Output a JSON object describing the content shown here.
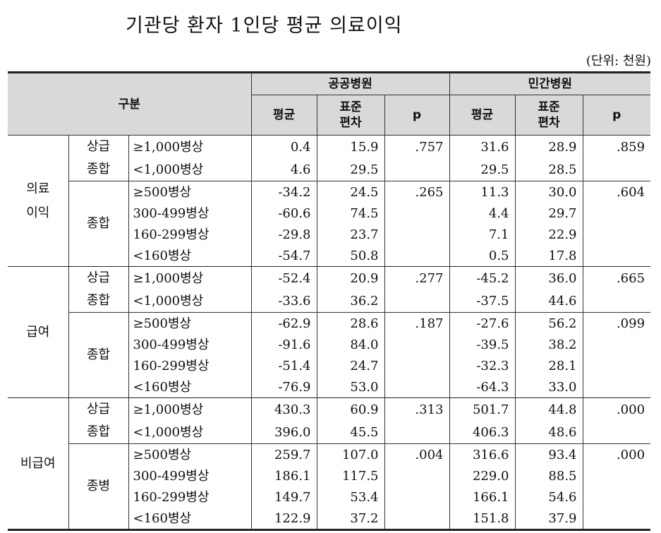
{
  "title": "기관당 환자 1인당 평균 의료이익",
  "unit": "(단위: 천원)",
  "header": {
    "gubun": "구분",
    "public": "공공병원",
    "private": "민간병원",
    "mean": "평균",
    "sd_line1": "표준",
    "sd_line2": "편차",
    "p": "p"
  },
  "sections": [
    {
      "label_lines": [
        "의료",
        "이익"
      ],
      "groups": [
        {
          "label_lines": [
            "상급",
            "종합"
          ],
          "rows": [
            {
              "size": "≥1,000병상",
              "pub_mean": "0.4",
              "pub_sd": "15.9",
              "pub_p": ".757",
              "pri_mean": "31.6",
              "pri_sd": "28.9",
              "pri_p": ".859"
            },
            {
              "size": "<1,000병상",
              "pub_mean": "4.6",
              "pub_sd": "29.5",
              "pub_p": "",
              "pri_mean": "29.5",
              "pri_sd": "28.5",
              "pri_p": ""
            }
          ]
        },
        {
          "label_lines": [
            "종합"
          ],
          "rows": [
            {
              "size": "≥500병상",
              "pub_mean": "-34.2",
              "pub_sd": "24.5",
              "pub_p": ".265",
              "pri_mean": "11.3",
              "pri_sd": "30.0",
              "pri_p": ".604"
            },
            {
              "size": "300-499병상",
              "pub_mean": "-60.6",
              "pub_sd": "74.5",
              "pub_p": "",
              "pri_mean": "4.4",
              "pri_sd": "29.7",
              "pri_p": ""
            },
            {
              "size": "160-299병상",
              "pub_mean": "-29.8",
              "pub_sd": "23.7",
              "pub_p": "",
              "pri_mean": "7.1",
              "pri_sd": "22.9",
              "pri_p": ""
            },
            {
              "size": "<160병상",
              "pub_mean": "-54.7",
              "pub_sd": "50.8",
              "pub_p": "",
              "pri_mean": "0.5",
              "pri_sd": "17.8",
              "pri_p": ""
            }
          ]
        }
      ]
    },
    {
      "label_lines": [
        "급여"
      ],
      "groups": [
        {
          "label_lines": [
            "상급",
            "종합"
          ],
          "rows": [
            {
              "size": "≥1,000병상",
              "pub_mean": "-52.4",
              "pub_sd": "20.9",
              "pub_p": ".277",
              "pri_mean": "-45.2",
              "pri_sd": "36.0",
              "pri_p": ".665"
            },
            {
              "size": "<1,000병상",
              "pub_mean": "-33.6",
              "pub_sd": "36.2",
              "pub_p": "",
              "pri_mean": "-37.5",
              "pri_sd": "44.6",
              "pri_p": ""
            }
          ]
        },
        {
          "label_lines": [
            "종합"
          ],
          "rows": [
            {
              "size": "≥500병상",
              "pub_mean": "-62.9",
              "pub_sd": "28.6",
              "pub_p": ".187",
              "pri_mean": "-27.6",
              "pri_sd": "56.2",
              "pri_p": ".099"
            },
            {
              "size": "300-499병상",
              "pub_mean": "-91.6",
              "pub_sd": "84.0",
              "pub_p": "",
              "pri_mean": "-39.5",
              "pri_sd": "38.2",
              "pri_p": ""
            },
            {
              "size": "160-299병상",
              "pub_mean": "-51.4",
              "pub_sd": "24.7",
              "pub_p": "",
              "pri_mean": "-32.3",
              "pri_sd": "28.1",
              "pri_p": ""
            },
            {
              "size": "<160병상",
              "pub_mean": "-76.9",
              "pub_sd": "53.0",
              "pub_p": "",
              "pri_mean": "-64.3",
              "pri_sd": "33.0",
              "pri_p": ""
            }
          ]
        }
      ]
    },
    {
      "label_lines": [
        "비급여"
      ],
      "groups": [
        {
          "label_lines": [
            "상급",
            "종합"
          ],
          "rows": [
            {
              "size": "≥1,000병상",
              "pub_mean": "430.3",
              "pub_sd": "60.9",
              "pub_p": ".313",
              "pri_mean": "501.7",
              "pri_sd": "44.8",
              "pri_p": ".000"
            },
            {
              "size": "<1,000병상",
              "pub_mean": "396.0",
              "pub_sd": "45.5",
              "pub_p": "",
              "pri_mean": "406.3",
              "pri_sd": "48.6",
              "pri_p": ""
            }
          ]
        },
        {
          "label_lines": [
            "종병"
          ],
          "rows": [
            {
              "size": "≥500병상",
              "pub_mean": "259.7",
              "pub_sd": "107.0",
              "pub_p": ".004",
              "pri_mean": "316.6",
              "pri_sd": "93.4",
              "pri_p": ".000"
            },
            {
              "size": "300-499병상",
              "pub_mean": "186.1",
              "pub_sd": "117.5",
              "pub_p": "",
              "pri_mean": "229.0",
              "pri_sd": "88.5",
              "pri_p": ""
            },
            {
              "size": "160-299병상",
              "pub_mean": "149.7",
              "pub_sd": "53.4",
              "pub_p": "",
              "pri_mean": "166.1",
              "pri_sd": "54.6",
              "pri_p": ""
            },
            {
              "size": "<160병상",
              "pub_mean": "122.9",
              "pub_sd": "37.2",
              "pub_p": "",
              "pri_mean": "151.8",
              "pri_sd": "37.9",
              "pri_p": ""
            }
          ]
        }
      ]
    }
  ]
}
